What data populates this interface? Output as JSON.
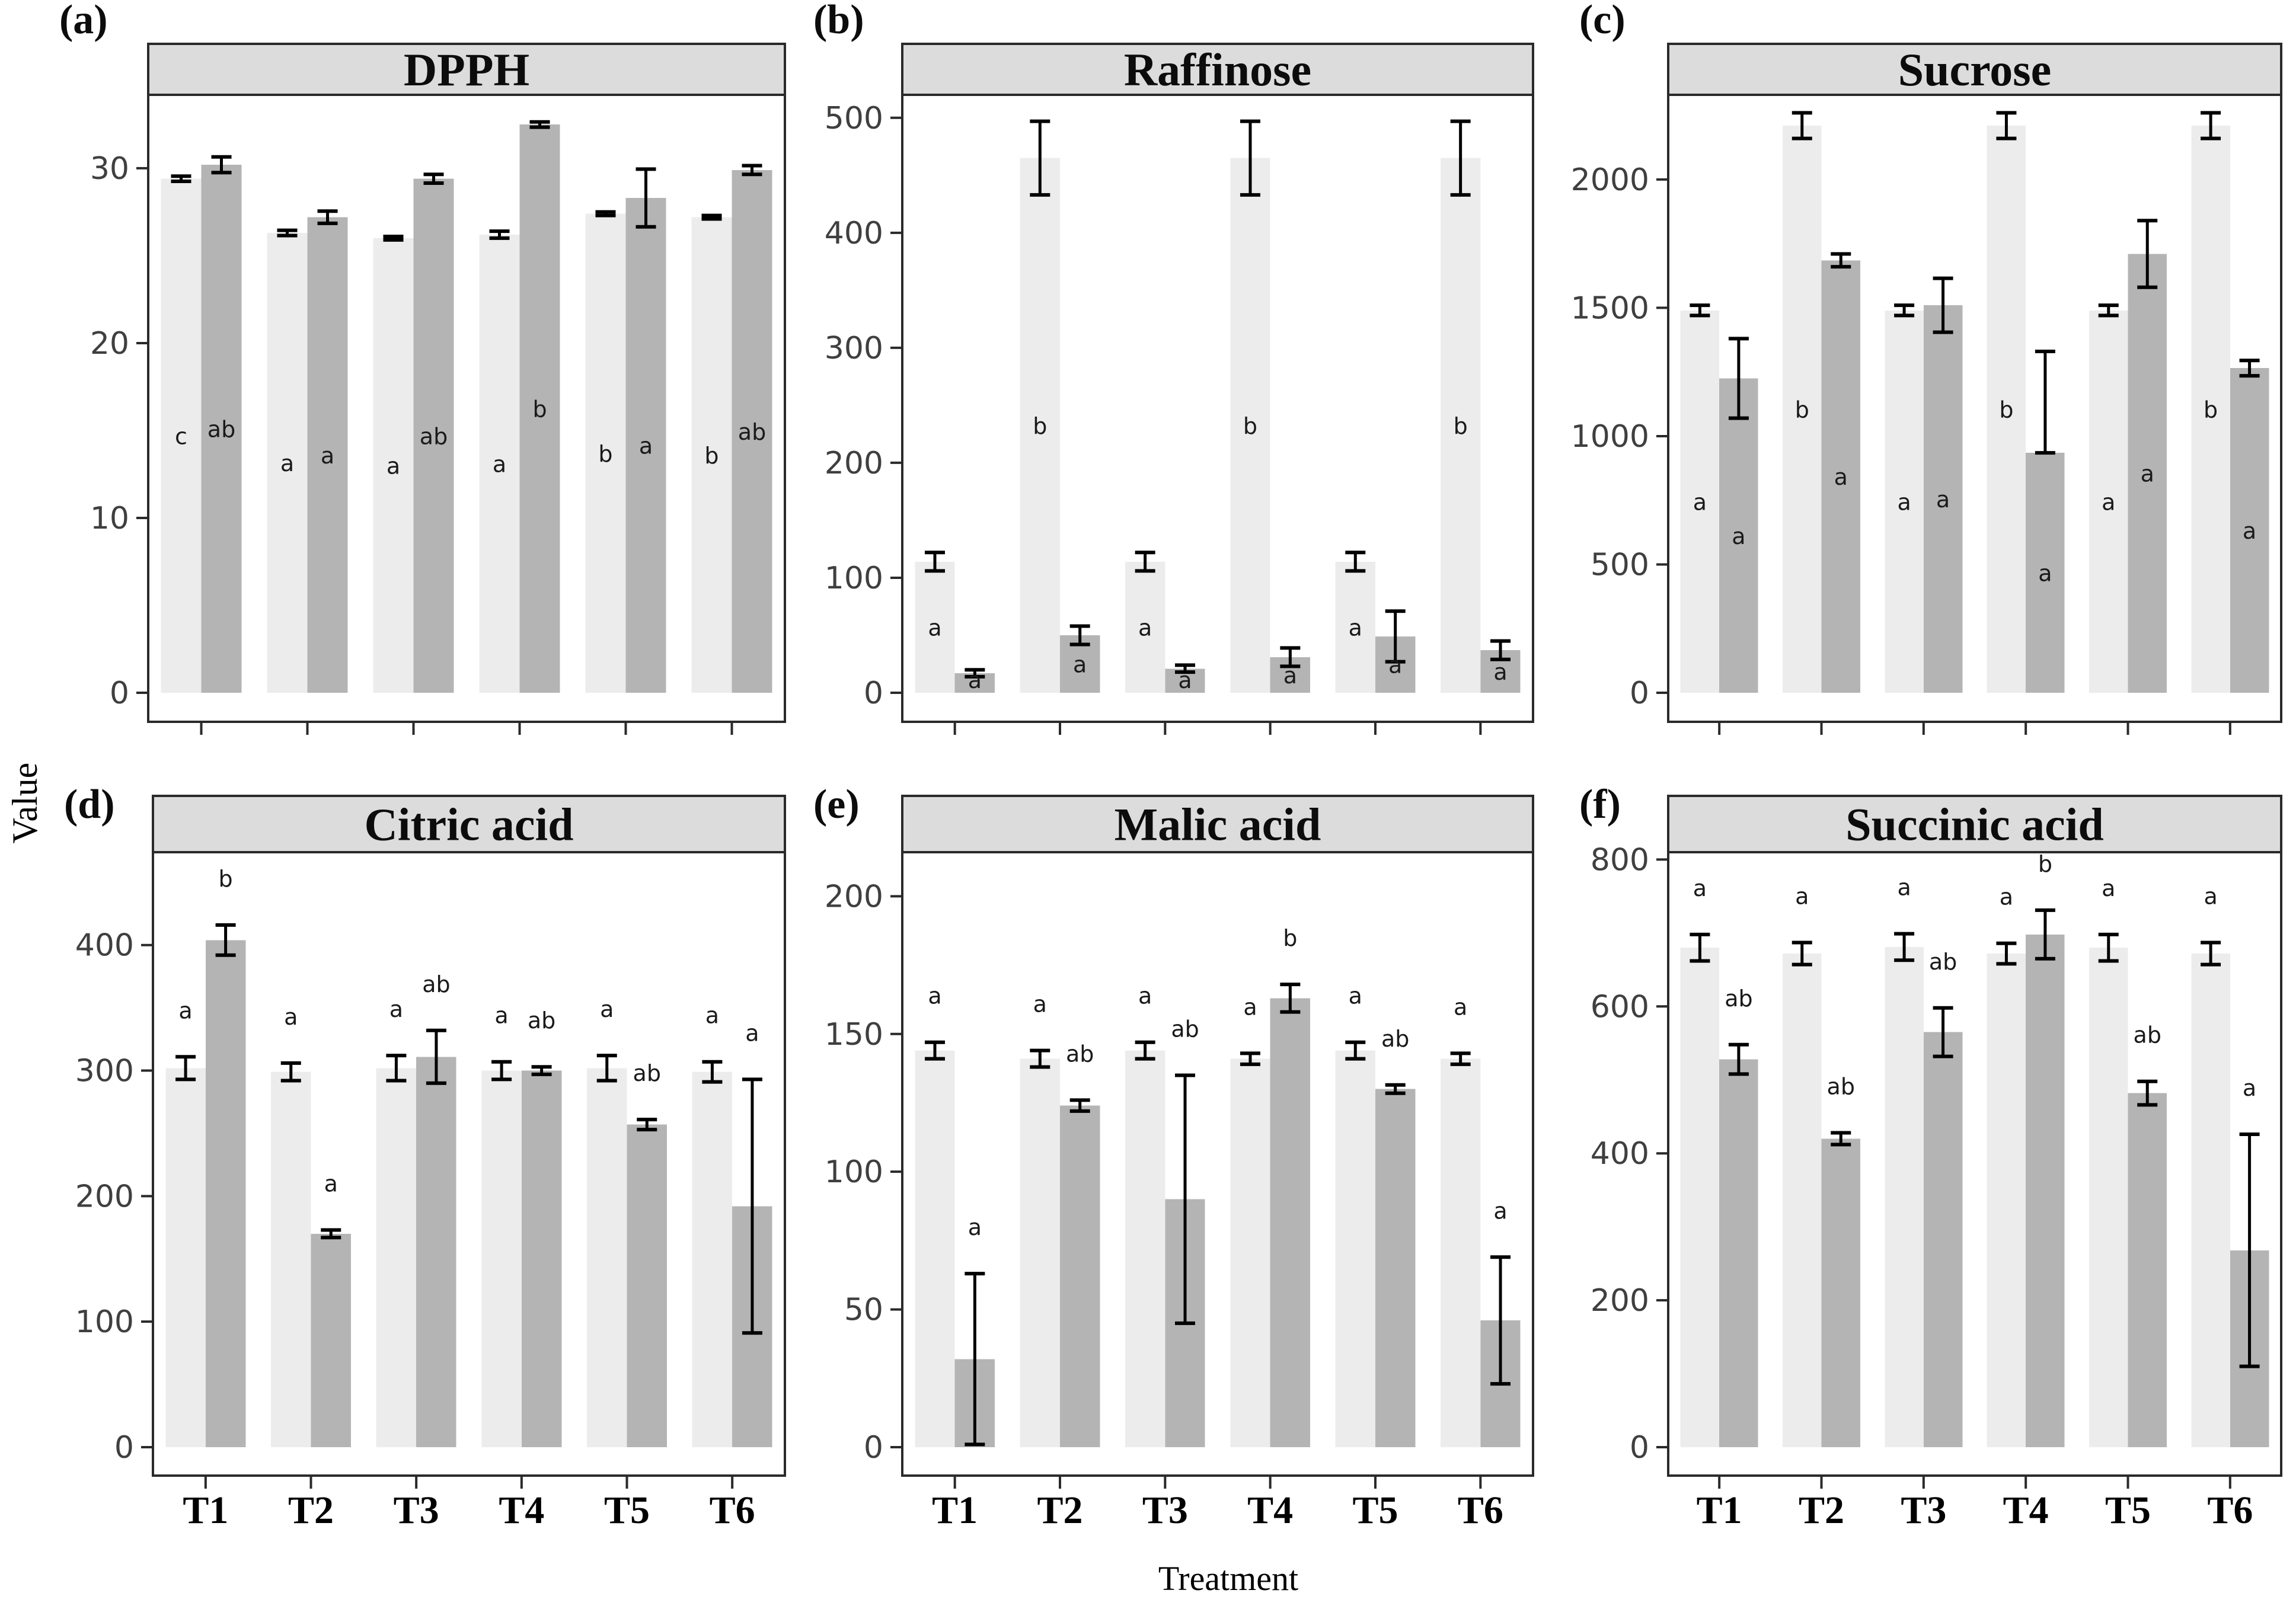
{
  "labels": {
    "y": "Value",
    "x": "Treatment"
  },
  "categories": [
    "T1",
    "T2",
    "T3",
    "T4",
    "T5",
    "T6"
  ],
  "colors": {
    "bar_light": "#ececec",
    "bar_dark": "#b4b4b4",
    "strip_bg": "#dcdcdc",
    "panel_border": "#2a2a2a",
    "error_bar": "#000000",
    "tick_text": "#3f3f3f",
    "letter_text": "#1a1a1a",
    "background": "#ffffff"
  },
  "chart_data": [
    {
      "type": "bar",
      "tag": "(a)",
      "title": "DPPH",
      "ylim": [
        0,
        34.2
      ],
      "yticks": [
        0,
        10,
        20,
        30
      ],
      "letter_pos": "mid",
      "legend": "none",
      "grid": false,
      "groups": [
        {
          "t": "T1",
          "light": {
            "v": 29.4,
            "e": 0.15,
            "letter": "c"
          },
          "dark": {
            "v": 30.2,
            "e": 0.45,
            "letter": "ab"
          }
        },
        {
          "t": "T2",
          "light": {
            "v": 26.3,
            "e": 0.15,
            "letter": "a"
          },
          "dark": {
            "v": 27.2,
            "e": 0.35,
            "letter": "a"
          }
        },
        {
          "t": "T3",
          "light": {
            "v": 26.0,
            "e": 0.1,
            "letter": "a"
          },
          "dark": {
            "v": 29.4,
            "e": 0.25,
            "letter": "ab"
          }
        },
        {
          "t": "T4",
          "light": {
            "v": 26.2,
            "e": 0.2,
            "letter": "a"
          },
          "dark": {
            "v": 32.5,
            "e": 0.15,
            "letter": "b"
          }
        },
        {
          "t": "T5",
          "light": {
            "v": 27.4,
            "e": 0.1,
            "letter": "b"
          },
          "dark": {
            "v": 28.3,
            "e": 1.65,
            "letter": "a"
          }
        },
        {
          "t": "T6",
          "light": {
            "v": 27.2,
            "e": 0.1,
            "letter": "b"
          },
          "dark": {
            "v": 29.9,
            "e": 0.25,
            "letter": "ab"
          }
        }
      ]
    },
    {
      "type": "bar",
      "tag": "(b)",
      "title": "Raffinose",
      "ylim": [
        0,
        520
      ],
      "yticks": [
        0,
        100,
        200,
        300,
        400,
        500
      ],
      "letter_pos": "mid",
      "legend": "none",
      "grid": false,
      "groups": [
        {
          "t": "T1",
          "light": {
            "v": 114,
            "e": 8,
            "letter": "a"
          },
          "dark": {
            "v": 17,
            "e": 3,
            "letter": "a"
          }
        },
        {
          "t": "T2",
          "light": {
            "v": 465,
            "e": 32,
            "letter": "b"
          },
          "dark": {
            "v": 50,
            "e": 8,
            "letter": "a"
          }
        },
        {
          "t": "T3",
          "light": {
            "v": 114,
            "e": 8,
            "letter": "a"
          },
          "dark": {
            "v": 21,
            "e": 3,
            "letter": "a"
          }
        },
        {
          "t": "T4",
          "light": {
            "v": 465,
            "e": 32,
            "letter": "b"
          },
          "dark": {
            "v": 31,
            "e": 8,
            "letter": "a"
          }
        },
        {
          "t": "T5",
          "light": {
            "v": 114,
            "e": 8,
            "letter": "a"
          },
          "dark": {
            "v": 49,
            "e": 22,
            "letter": "a"
          }
        },
        {
          "t": "T6",
          "light": {
            "v": 465,
            "e": 32,
            "letter": "b"
          },
          "dark": {
            "v": 37,
            "e": 8,
            "letter": "a"
          }
        }
      ]
    },
    {
      "type": "bar",
      "tag": "(c)",
      "title": "Sucrose",
      "ylim": [
        0,
        2330
      ],
      "yticks": [
        0,
        500,
        1000,
        1500,
        2000
      ],
      "letter_pos": "mid",
      "legend": "none",
      "grid": false,
      "groups": [
        {
          "t": "T1",
          "light": {
            "v": 1490,
            "e": 20,
            "letter": "a"
          },
          "dark": {
            "v": 1225,
            "e": 155,
            "letter": "a"
          }
        },
        {
          "t": "T2",
          "light": {
            "v": 2210,
            "e": 50,
            "letter": "b"
          },
          "dark": {
            "v": 1685,
            "e": 25,
            "letter": "a"
          }
        },
        {
          "t": "T3",
          "light": {
            "v": 1490,
            "e": 20,
            "letter": "a"
          },
          "dark": {
            "v": 1510,
            "e": 105,
            "letter": "a"
          }
        },
        {
          "t": "T4",
          "light": {
            "v": 2210,
            "e": 50,
            "letter": "b"
          },
          "dark": {
            "v": 935,
            "e": 395,
            "ed": 0,
            "letter": "a"
          }
        },
        {
          "t": "T5",
          "light": {
            "v": 1490,
            "e": 20,
            "letter": "a"
          },
          "dark": {
            "v": 1710,
            "e": 130,
            "letter": "a"
          }
        },
        {
          "t": "T6",
          "light": {
            "v": 2210,
            "e": 50,
            "letter": "b"
          },
          "dark": {
            "v": 1265,
            "e": 30,
            "letter": "a"
          }
        }
      ]
    },
    {
      "type": "bar",
      "tag": "(d)",
      "title": "Citric acid",
      "ylim": [
        0,
        474
      ],
      "yticks": [
        0,
        100,
        200,
        300,
        400
      ],
      "letter_pos": "above",
      "legend": "none",
      "grid": false,
      "groups": [
        {
          "t": "T1",
          "light": {
            "v": 302,
            "e": 9,
            "letter": "a"
          },
          "dark": {
            "v": 404,
            "e": 12,
            "letter": "b"
          }
        },
        {
          "t": "T2",
          "light": {
            "v": 299,
            "e": 7,
            "letter": "a"
          },
          "dark": {
            "v": 170,
            "e": 3,
            "letter": "a"
          }
        },
        {
          "t": "T3",
          "light": {
            "v": 302,
            "e": 10,
            "letter": "a"
          },
          "dark": {
            "v": 311,
            "e": 21,
            "letter": "ab"
          }
        },
        {
          "t": "T4",
          "light": {
            "v": 300,
            "e": 7,
            "letter": "a"
          },
          "dark": {
            "v": 300,
            "e": 3,
            "letter": "ab"
          }
        },
        {
          "t": "T5",
          "light": {
            "v": 302,
            "e": 10,
            "letter": "a"
          },
          "dark": {
            "v": 257,
            "e": 4,
            "letter": "ab"
          }
        },
        {
          "t": "T6",
          "light": {
            "v": 299,
            "e": 8,
            "letter": "a"
          },
          "dark": {
            "v": 192,
            "e": 101,
            "letter": "a"
          }
        }
      ]
    },
    {
      "type": "bar",
      "tag": "(e)",
      "title": "Malic acid",
      "ylim": [
        0,
        216
      ],
      "yticks": [
        0,
        50,
        100,
        150,
        200
      ],
      "letter_pos": "above",
      "legend": "none",
      "grid": false,
      "groups": [
        {
          "t": "T1",
          "light": {
            "v": 144,
            "e": 3,
            "letter": "a"
          },
          "dark": {
            "v": 32,
            "e": 31,
            "letter": "a"
          }
        },
        {
          "t": "T2",
          "light": {
            "v": 141,
            "e": 3,
            "letter": "a"
          },
          "dark": {
            "v": 124,
            "e": 2,
            "letter": "ab"
          }
        },
        {
          "t": "T3",
          "light": {
            "v": 144,
            "e": 3,
            "letter": "a"
          },
          "dark": {
            "v": 90,
            "e": 45,
            "letter": "ab"
          }
        },
        {
          "t": "T4",
          "light": {
            "v": 141,
            "e": 2,
            "letter": "a"
          },
          "dark": {
            "v": 163,
            "e": 5,
            "letter": "b"
          }
        },
        {
          "t": "T5",
          "light": {
            "v": 144,
            "e": 3,
            "letter": "a"
          },
          "dark": {
            "v": 130,
            "e": 1.5,
            "letter": "ab"
          }
        },
        {
          "t": "T6",
          "light": {
            "v": 141,
            "e": 2,
            "letter": "a"
          },
          "dark": {
            "v": 46,
            "e": 23,
            "letter": "a"
          }
        }
      ]
    },
    {
      "type": "bar",
      "tag": "(f)",
      "title": "Succinic acid",
      "ylim": [
        0,
        810
      ],
      "yticks": [
        0,
        200,
        400,
        600,
        800
      ],
      "letter_pos": "above",
      "legend": "none",
      "grid": false,
      "groups": [
        {
          "t": "T1",
          "light": {
            "v": 680,
            "e": 18,
            "letter": "a"
          },
          "dark": {
            "v": 528,
            "e": 20,
            "letter": "ab"
          }
        },
        {
          "t": "T2",
          "light": {
            "v": 672,
            "e": 15,
            "letter": "a"
          },
          "dark": {
            "v": 420,
            "e": 8,
            "letter": "ab"
          }
        },
        {
          "t": "T3",
          "light": {
            "v": 681,
            "e": 18,
            "letter": "a"
          },
          "dark": {
            "v": 565,
            "e": 33,
            "letter": "ab"
          }
        },
        {
          "t": "T4",
          "light": {
            "v": 672,
            "e": 14,
            "letter": "a"
          },
          "dark": {
            "v": 698,
            "e": 33,
            "letter": "b"
          }
        },
        {
          "t": "T5",
          "light": {
            "v": 680,
            "e": 18,
            "letter": "a"
          },
          "dark": {
            "v": 482,
            "e": 16,
            "letter": "ab"
          }
        },
        {
          "t": "T6",
          "light": {
            "v": 672,
            "e": 15,
            "letter": "a"
          },
          "dark": {
            "v": 268,
            "e": 158,
            "letter": "a"
          }
        }
      ]
    }
  ]
}
